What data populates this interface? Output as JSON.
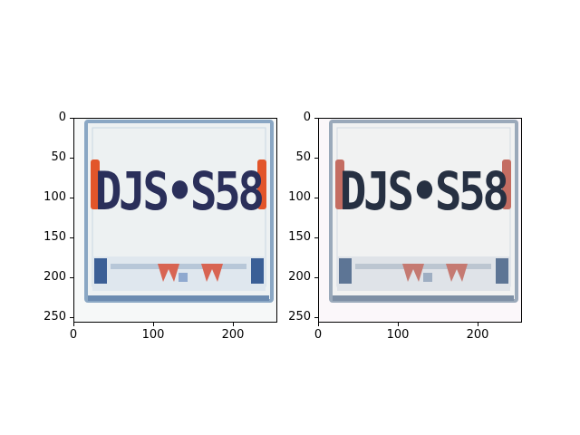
{
  "figure": {
    "panels": [
      {
        "id": "left",
        "image_description_semantic": "license-plate-crop",
        "x_ticks": [
          "0",
          "100",
          "200"
        ],
        "y_ticks": [
          "0",
          "50",
          "100",
          "150",
          "200",
          "250"
        ],
        "plate_text": "DJS•S58",
        "style": "sharp"
      },
      {
        "id": "right",
        "image_description_semantic": "license-plate-crop",
        "x_ticks": [
          "0",
          "100",
          "200"
        ],
        "y_ticks": [
          "0",
          "50",
          "100",
          "150",
          "200",
          "250"
        ],
        "plate_text": "DJS•S58",
        "style": "faded"
      }
    ]
  },
  "colors": {
    "plate_border": "#8aa7c4",
    "plate_bg": "#eef2f4",
    "text_left": "#2a2f5a",
    "text_right": "#263042",
    "accent_red": "#e2552a",
    "accent_blue": "#4f76a8"
  }
}
